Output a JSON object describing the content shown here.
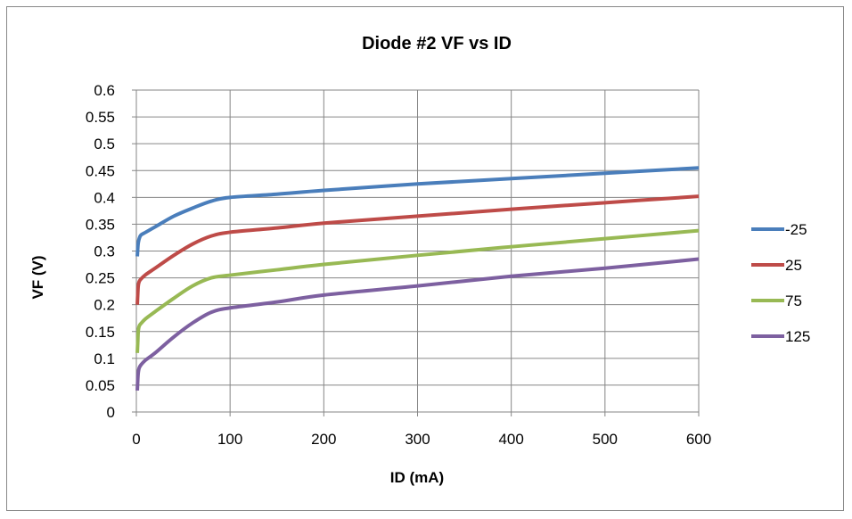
{
  "chart_data": {
    "type": "line",
    "title": "Diode #2 VF vs ID",
    "xlabel": "ID (mA)",
    "ylabel": "VF (V)",
    "xlim": [
      0,
      600
    ],
    "ylim": [
      0,
      0.6
    ],
    "x_ticks": [
      "0",
      "100",
      "200",
      "300",
      "400",
      "500",
      "600"
    ],
    "y_ticks": [
      "0",
      "0.05",
      "0.1",
      "0.15",
      "0.2",
      "0.25",
      "0.3",
      "0.35",
      "0.4",
      "0.45",
      "0.5",
      "0.55",
      "0.6"
    ],
    "grid": true,
    "legend_position": "right",
    "series": [
      {
        "name": "-25",
        "color": "#4a7ebb",
        "x": [
          1,
          1.5,
          2,
          3,
          5,
          10,
          20,
          40,
          60,
          80,
          100,
          150,
          200,
          300,
          400,
          500,
          600
        ],
        "y": [
          0.29,
          0.305,
          0.315,
          0.323,
          0.33,
          0.335,
          0.345,
          0.365,
          0.38,
          0.393,
          0.4,
          0.406,
          0.413,
          0.425,
          0.435,
          0.445,
          0.455
        ]
      },
      {
        "name": "25",
        "color": "#be4b48",
        "x": [
          1,
          1.5,
          2,
          3,
          5,
          10,
          20,
          40,
          60,
          80,
          100,
          150,
          200,
          300,
          400,
          500,
          600
        ],
        "y": [
          0.2,
          0.22,
          0.235,
          0.243,
          0.248,
          0.256,
          0.268,
          0.292,
          0.313,
          0.328,
          0.335,
          0.343,
          0.352,
          0.365,
          0.378,
          0.39,
          0.402
        ]
      },
      {
        "name": "75",
        "color": "#98b954",
        "x": [
          1,
          1.5,
          2,
          3,
          5,
          10,
          20,
          40,
          60,
          80,
          100,
          150,
          200,
          300,
          400,
          500,
          600
        ],
        "y": [
          0.11,
          0.13,
          0.15,
          0.16,
          0.165,
          0.174,
          0.187,
          0.212,
          0.235,
          0.25,
          0.255,
          0.265,
          0.275,
          0.292,
          0.308,
          0.323,
          0.338
        ]
      },
      {
        "name": "125",
        "color": "#7d60a0",
        "x": [
          1,
          1.5,
          2,
          3,
          5,
          10,
          20,
          40,
          60,
          80,
          100,
          150,
          200,
          300,
          400,
          500,
          600
        ],
        "y": [
          0.04,
          0.06,
          0.073,
          0.082,
          0.088,
          0.097,
          0.11,
          0.14,
          0.166,
          0.186,
          0.194,
          0.205,
          0.218,
          0.235,
          0.253,
          0.268,
          0.285
        ]
      }
    ]
  }
}
